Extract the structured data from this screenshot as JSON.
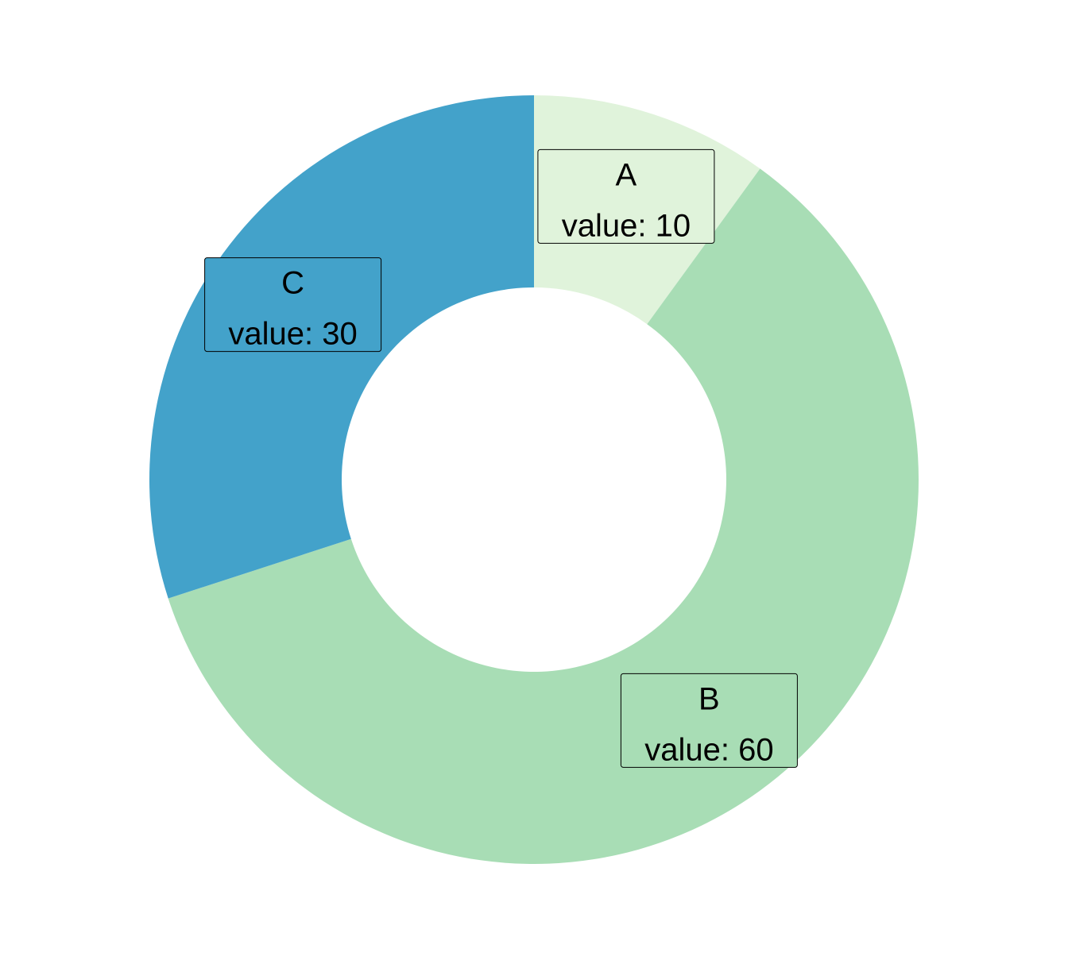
{
  "chart_data": {
    "type": "pie",
    "subtype": "donut",
    "categories": [
      "A",
      "B",
      "C"
    ],
    "values": [
      10,
      60,
      30
    ],
    "value_label_prefix": "value: ",
    "colors": [
      "#e0f3db",
      "#a8ddb5",
      "#43a2ca"
    ],
    "legend": "none",
    "label_style": "boxed labels on each slice"
  }
}
